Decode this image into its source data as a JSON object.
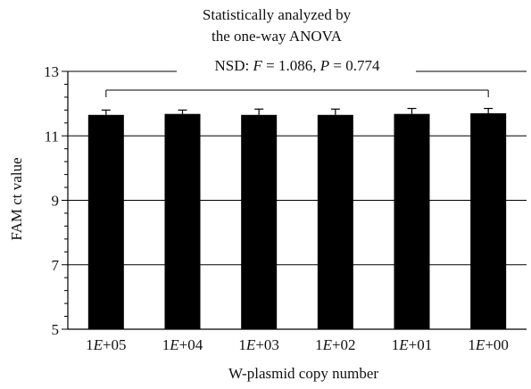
{
  "chart_data": {
    "type": "bar",
    "title_line1": "Statistically analyzed by",
    "title_line2": "the one-way ANOVA",
    "annotation": {
      "prefix": "NSD: ",
      "f_label": "F",
      "f_value": " = 1.086, ",
      "p_label": "P",
      "p_value": " = 0.774"
    },
    "xlabel": "W-plasmid copy number",
    "ylabel": "FAM ct value",
    "categories": [
      "1E+05",
      "1E+04",
      "1E+03",
      "1E+02",
      "1E+01",
      "1E+00"
    ],
    "category_parts": [
      {
        "num": "1",
        "sym": "E",
        "exp": "+05"
      },
      {
        "num": "1",
        "sym": "E",
        "exp": "+04"
      },
      {
        "num": "1",
        "sym": "E",
        "exp": "+03"
      },
      {
        "num": "1",
        "sym": "E",
        "exp": "+02"
      },
      {
        "num": "1",
        "sym": "E",
        "exp": "+01"
      },
      {
        "num": "1",
        "sym": "E",
        "exp": "+00"
      }
    ],
    "values": [
      11.65,
      11.68,
      11.65,
      11.65,
      11.68,
      11.7
    ],
    "error_upper": [
      0.15,
      0.12,
      0.18,
      0.18,
      0.17,
      0.15
    ],
    "ylim": [
      5,
      13
    ],
    "yticks": [
      5,
      7,
      9,
      11,
      13
    ],
    "grid": true,
    "bar_color": "#000000"
  }
}
